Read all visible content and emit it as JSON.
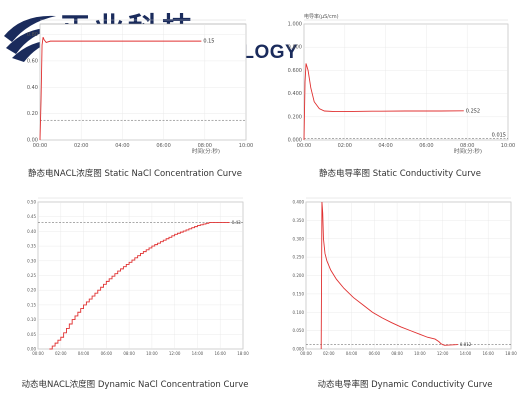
{
  "logo": {
    "cn": "正业科技",
    "en": "ZHENGYE TECHNOLOGY",
    "mark_color": "#1a2b5c"
  },
  "chart_data": [
    {
      "type": "line",
      "caption": "静态电NACL浓度图  Static NaCl Concentration Curve",
      "title": "",
      "legend": "",
      "xlabel": "时间(分:秒)",
      "ylabel": "",
      "x_ticks": [
        "00:00",
        "02:00",
        "04:00",
        "06:00",
        "08:00",
        "10:00"
      ],
      "y_ticks": [
        "0.00",
        "0.20",
        "0.40",
        "0.60",
        "0.80"
      ],
      "xlim": [
        0,
        600
      ],
      "ylim": [
        0,
        0.88
      ],
      "threshold": 0.15,
      "value_label": "0.15",
      "series": [
        {
          "x": [
            0,
            3,
            6,
            9,
            12,
            18,
            30,
            60,
            120,
            240,
            400,
            470
          ],
          "y": [
            0.0,
            0.3,
            0.72,
            0.78,
            0.76,
            0.74,
            0.75,
            0.75,
            0.75,
            0.75,
            0.75,
            0.75
          ]
        }
      ],
      "color": "#e03030"
    },
    {
      "type": "line",
      "caption": "静态电导率图  Static Conductivity Curve",
      "title": "",
      "legend": "",
      "ylabel_top": "电导率(μS/cm)",
      "xlabel": "时间(分:秒)",
      "x_ticks": [
        "00:00",
        "02:00",
        "04:00",
        "06:00",
        "08:00",
        "10:00"
      ],
      "y_ticks": [
        "0.000",
        "0.200",
        "0.400",
        "0.600",
        "0.800",
        "1.000"
      ],
      "xlim": [
        0,
        600
      ],
      "ylim": [
        0,
        1.0
      ],
      "threshold": 0.015,
      "value_label": "0.252",
      "threshold_label": "0.015",
      "series": [
        {
          "x": [
            0,
            3,
            6,
            12,
            20,
            30,
            45,
            60,
            90,
            120,
            200,
            300,
            400,
            470
          ],
          "y": [
            0.0,
            0.5,
            0.66,
            0.6,
            0.45,
            0.33,
            0.27,
            0.25,
            0.245,
            0.245,
            0.248,
            0.25,
            0.25,
            0.252
          ]
        }
      ],
      "color": "#e03030"
    },
    {
      "type": "line",
      "caption": "动态电NACL浓度图  Dynamic NaCl Concentration Curve",
      "title": "",
      "legend": "",
      "xlabel": "",
      "x_ticks": [
        "00:00",
        "02:00",
        "04:00",
        "06:00",
        "08:00",
        "10:00",
        "12:00",
        "14:00",
        "16:00",
        "18:00"
      ],
      "y_ticks": [
        "0.00",
        "0.05",
        "0.10",
        "0.15",
        "0.20",
        "0.25",
        "0.30",
        "0.35",
        "0.40",
        "0.45",
        "0.50"
      ],
      "xlim": [
        0,
        1080
      ],
      "ylim": [
        0,
        0.5
      ],
      "threshold": 0.43,
      "value_label": "0.43",
      "series": [
        {
          "x": [
            60,
            120,
            180,
            240,
            300,
            360,
            420,
            480,
            540,
            600,
            660,
            720,
            780,
            840,
            900,
            960,
            1010
          ],
          "y": [
            0.0,
            0.04,
            0.1,
            0.15,
            0.19,
            0.23,
            0.265,
            0.295,
            0.325,
            0.35,
            0.37,
            0.39,
            0.405,
            0.42,
            0.43,
            0.43,
            0.43
          ]
        }
      ],
      "color": "#e03030"
    },
    {
      "type": "line",
      "caption": "动态电导率图  Dynamic Conductivity Curve",
      "title": "",
      "legend": "",
      "xlabel": "",
      "x_ticks": [
        "00:00",
        "02:00",
        "04:00",
        "06:00",
        "08:00",
        "10:00",
        "12:00",
        "14:00",
        "16:00",
        "18:00"
      ],
      "y_ticks": [
        "0.000",
        "0.050",
        "0.100",
        "0.150",
        "0.200",
        "0.250",
        "0.300",
        "0.350",
        "0.400"
      ],
      "xlim": [
        0,
        1080
      ],
      "ylim": [
        0,
        0.4
      ],
      "threshold": 0.012,
      "value_label": "0.012",
      "series": [
        {
          "x": [
            80,
            84,
            88,
            92,
            100,
            110,
            130,
            160,
            200,
            250,
            300,
            350,
            400,
            450,
            500,
            550,
            600,
            640,
            680,
            700,
            710,
            720,
            730,
            800
          ],
          "y": [
            0.0,
            0.4,
            0.37,
            0.3,
            0.26,
            0.24,
            0.215,
            0.19,
            0.165,
            0.14,
            0.12,
            0.1,
            0.085,
            0.072,
            0.06,
            0.05,
            0.04,
            0.032,
            0.027,
            0.02,
            0.015,
            0.012,
            0.01,
            0.012
          ]
        }
      ],
      "color": "#e03030"
    }
  ]
}
